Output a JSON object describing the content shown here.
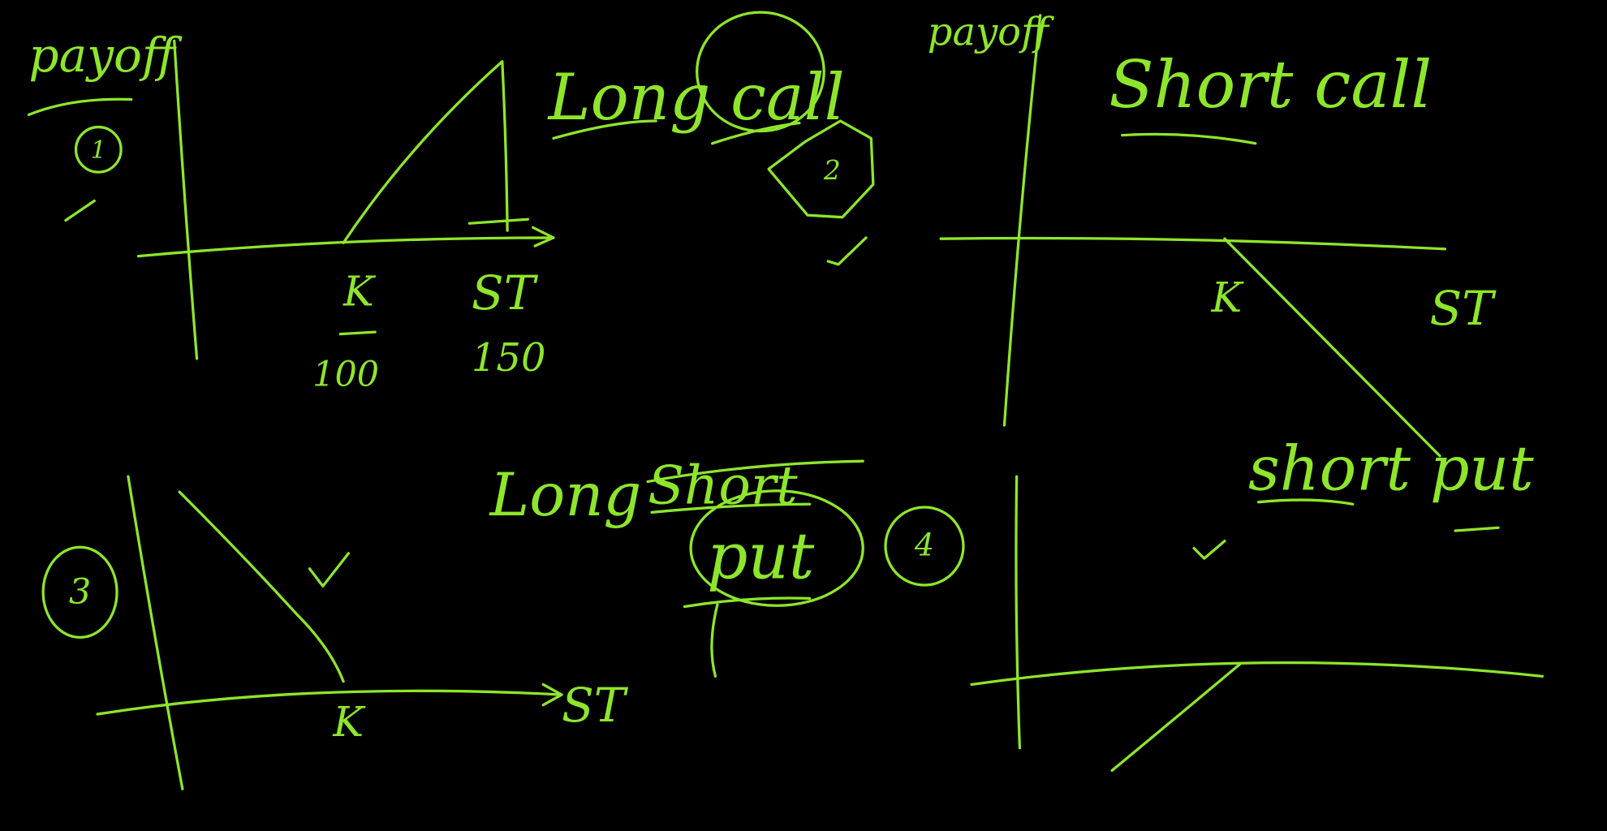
{
  "panels": [
    {
      "axis_label": "payoff",
      "title": "Long call",
      "number": "1",
      "strike_label": "K",
      "price_label": "ST",
      "strike_value": "100",
      "price_value": "150"
    },
    {
      "axis_label": "payoff",
      "title": "Short call",
      "number": "2",
      "strike_label": "K",
      "price_label": "ST"
    },
    {
      "title_prefix": "Long",
      "struck_word": "Short",
      "title": "put",
      "number": "3",
      "strike_label": "K",
      "price_label": "ST"
    },
    {
      "title": "short put",
      "number": "4"
    }
  ]
}
